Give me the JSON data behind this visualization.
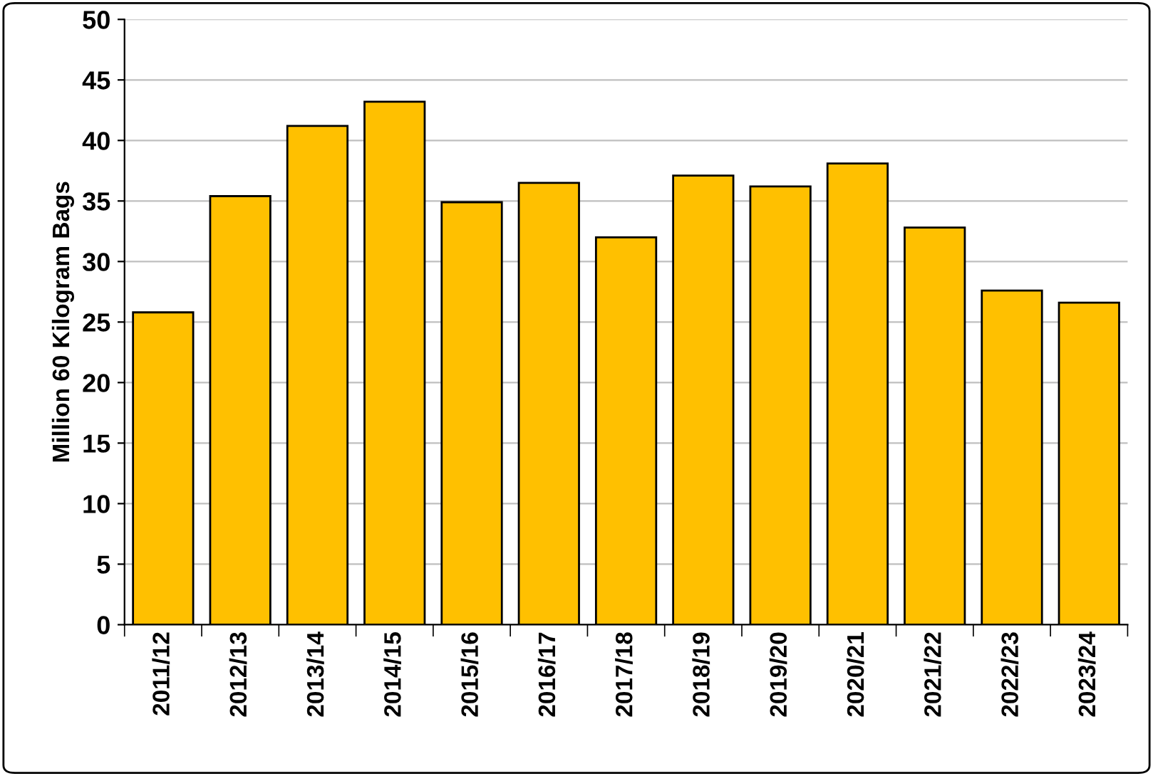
{
  "chart_data": {
    "type": "bar",
    "ylabel": "Million 60 Kilogram Bags",
    "categories": [
      "2011/12",
      "2012/13",
      "2013/14",
      "2014/15",
      "2015/16",
      "2016/17",
      "2017/18",
      "2018/19",
      "2019/20",
      "2020/21",
      "2021/22",
      "2022/23",
      "2023/24"
    ],
    "values": [
      25.8,
      35.4,
      41.2,
      43.2,
      34.9,
      36.5,
      32.0,
      37.1,
      36.2,
      38.1,
      32.8,
      27.6,
      26.6
    ],
    "color": "#ffc000",
    "ylim": [
      0,
      50
    ],
    "yticks": [
      0,
      5,
      10,
      15,
      20,
      25,
      30,
      35,
      40,
      45,
      50
    ],
    "grid": "y",
    "legend": false
  }
}
